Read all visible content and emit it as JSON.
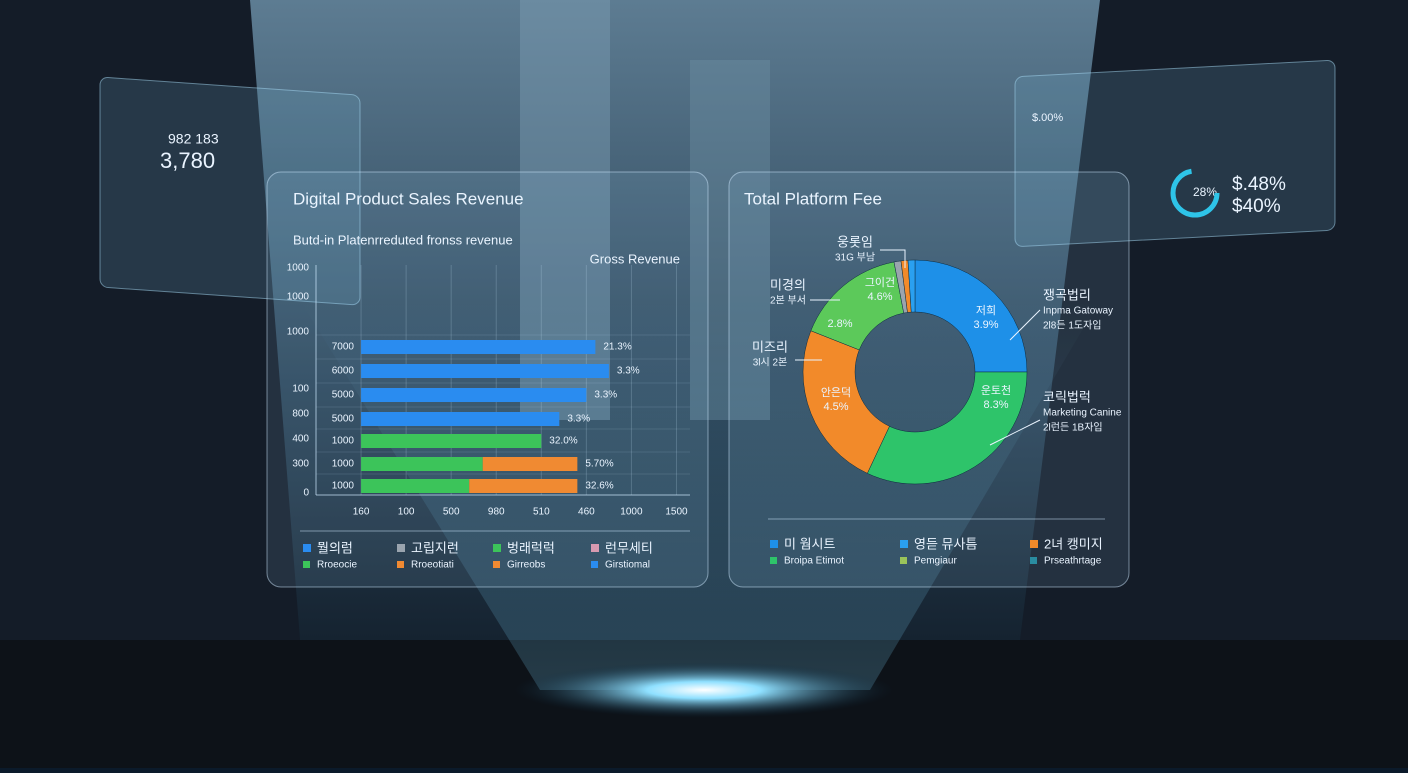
{
  "chart_data": [
    {
      "type": "bar",
      "orientation": "horizontal",
      "title": "Digital Product Sales Revenue",
      "subtitle": "Butd-in Platenrreduted fronss revenue",
      "series_label": "Gross Revenue",
      "categories": [
        "7000",
        "6000",
        "5000",
        "5000",
        "1000",
        "1000",
        "1000"
      ],
      "axis_labels": [
        "1000",
        "1000",
        "1000",
        "100",
        "800",
        "400",
        "300",
        "0"
      ],
      "series": [
        {
          "color": "#2a8cf0",
          "values": [
            5.2,
            5.5,
            5.0,
            4.4,
            null,
            null,
            null
          ]
        },
        {
          "color": "#3cc45a",
          "values": [
            null,
            null,
            null,
            null,
            4.0,
            2.7,
            2.4
          ]
        },
        {
          "color": "#f08a32",
          "values": [
            null,
            null,
            null,
            null,
            null,
            2.1,
            2.4
          ]
        }
      ],
      "bar_labels": [
        "21.3%",
        "3.3%",
        "3.3%",
        "3.3%",
        "32.0%",
        "5.70%",
        "32.6%"
      ],
      "xlim": [
        -1,
        7.3
      ],
      "xticks": [
        {
          "value": 0,
          "label": "160"
        },
        {
          "value": 1,
          "label": "100"
        },
        {
          "value": 2,
          "label": "500"
        },
        {
          "value": 3,
          "label": "980"
        },
        {
          "value": 4,
          "label": "510"
        },
        {
          "value": 5,
          "label": "460"
        },
        {
          "value": 6,
          "label": "1000"
        },
        {
          "value": 7,
          "label": "1500"
        }
      ],
      "grid": true,
      "legend": [
        {
          "label": "뭘의럼",
          "sublabel": "Rroeocie",
          "color": "#2a8cf0",
          "subcolor": "#3cc45a"
        },
        {
          "label": "고립지런",
          "sublabel": "Rroeotiati",
          "color": "#9aa4ae",
          "subcolor": "#f08a32"
        },
        {
          "label": "벙래럭럭",
          "sublabel": "Girreobs",
          "color": "#3cc45a",
          "subcolor": "#f08a32"
        },
        {
          "label": "런무세티",
          "sublabel": "Girstiomal",
          "color": "#d89ab0",
          "subcolor": "#2a8cf0"
        }
      ]
    },
    {
      "type": "pie",
      "donut": true,
      "title": "Total Platform Fee",
      "values": [
        25,
        32,
        24,
        16,
        1,
        1,
        1
      ],
      "colors": [
        "#1e90e8",
        "#2ec46a",
        "#f28a2a",
        "#5cc95a",
        "#9aa4ae",
        "#f28a2a",
        "#2aa0f0"
      ],
      "segment_texts": [
        [
          "저희",
          "3.9%"
        ],
        [
          "운토천",
          "8.3%"
        ],
        [
          "안은덕",
          "4.5%"
        ],
        [
          "2.8%"
        ],
        [
          "그이건",
          "4.6%"
        ]
      ],
      "callouts": [
        [
          "웅롯임",
          "31G 부남"
        ],
        [
          "미경의",
          "2본 부서"
        ],
        [
          "미즈리",
          "3l시 2본"
        ],
        [
          "쟁곡법리",
          "Inpma Gatoway",
          "2l8든 1도자입"
        ],
        [
          "코릭법럭",
          "Marketing Canine",
          "2l런든 1B자입"
        ]
      ],
      "legend": [
        {
          "label": "미 웜시트",
          "sublabel": "Broipa Etimot",
          "color": "#1e90e8",
          "subcolor": "#2ec46a"
        },
        {
          "label": "영듣 뮤사틈",
          "sublabel": "Pemgiaur",
          "color": "#2aa0f0",
          "subcolor": "#9ac45a"
        },
        {
          "label": "2녀 캥미지",
          "sublabel": "Prseathrtage",
          "color": "#f28a2a",
          "subcolor": "#2a8ca0"
        }
      ]
    }
  ],
  "floating": [
    "982 183",
    "3,780",
    "$.00%",
    "28%",
    "$.48%",
    "$40%"
  ]
}
